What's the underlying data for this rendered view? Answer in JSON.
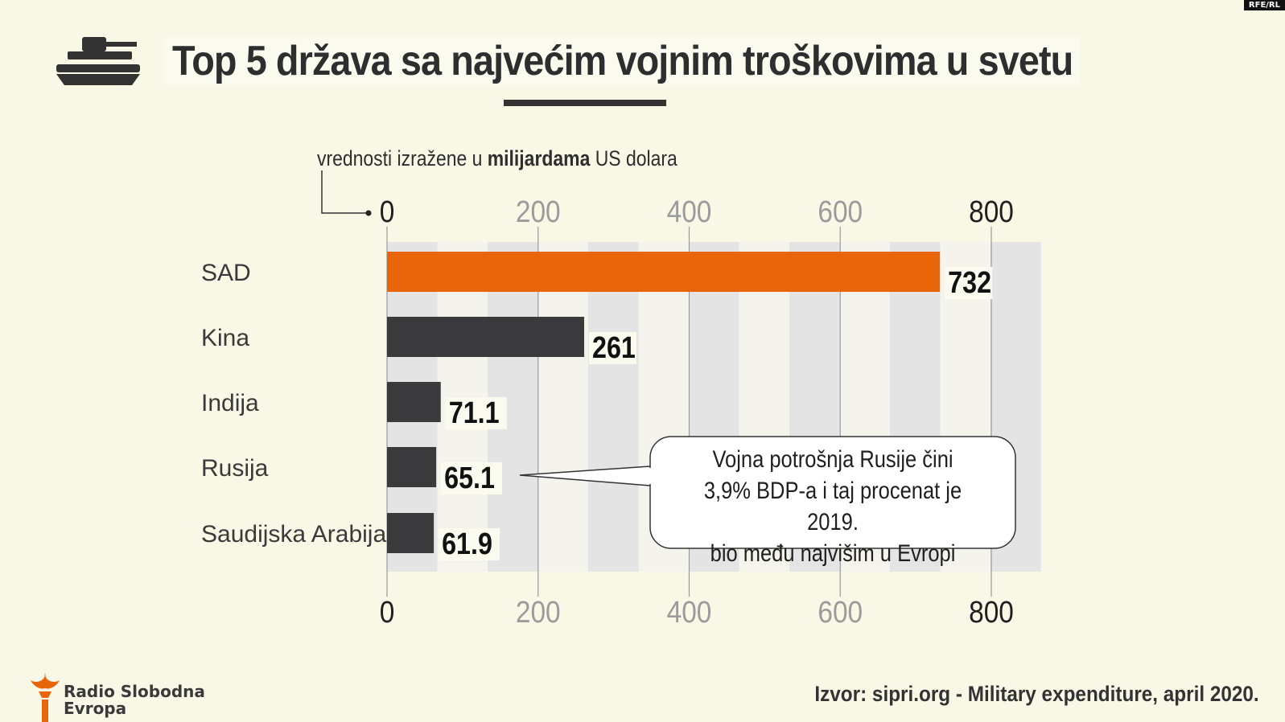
{
  "header": {
    "title": "Top 5 država sa najvećim vojnim troškovima u svetu",
    "subtitle_pre": "vrednosti izražene u ",
    "subtitle_bold": "milijardama",
    "subtitle_post": " US dolara",
    "icon": "tank-icon"
  },
  "badge": "RFE/RL",
  "chart_data": {
    "type": "bar",
    "orientation": "horizontal",
    "categories": [
      "SAD",
      "Kina",
      "Indija",
      "Rusija",
      "Saudijska Arabija"
    ],
    "values": [
      732,
      261,
      71.1,
      65.1,
      61.9
    ],
    "value_labels": [
      "732",
      "261",
      "71.1",
      "65.1",
      "61.9"
    ],
    "xlim": [
      0,
      800
    ],
    "ticks": [
      "0",
      "200",
      "400",
      "600",
      "800"
    ],
    "tick_values": [
      0,
      200,
      400,
      600,
      800
    ],
    "highlight_index": 0,
    "colors": {
      "highlight": "#e8650a",
      "bar": "#3a3a3c",
      "band_dark": "#e4e4e4",
      "band_light": "#f5f4ec"
    },
    "annotation": {
      "target": "Rusija",
      "lines": [
        "Vojna potrošnja Rusije čini",
        "3,9% BDP-a i taj procenat je 2019.",
        "bio među najvišim u Evropi"
      ]
    }
  },
  "footer": {
    "source": "Izvor: sipri.org - Military expenditure, april 2020.",
    "logo_line1": "Radio Slobodna",
    "logo_line2": "Evropa"
  }
}
